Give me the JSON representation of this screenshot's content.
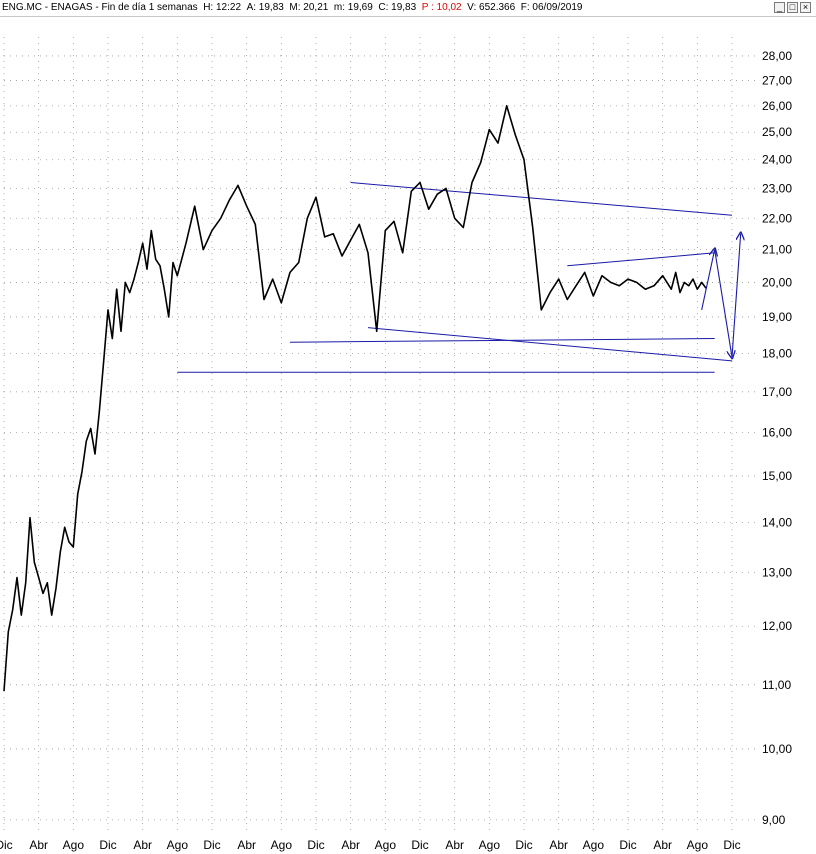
{
  "window": {
    "title": {
      "symbol": "ENG.MC",
      "name": "ENAGAS",
      "period": "Fin de día 1 semanas",
      "time": "H: 12:22",
      "open": "A: 19,83",
      "high": "M: 20,21",
      "low": "m: 19,69",
      "close": "C: 19,83",
      "p": "P : 10,02",
      "volume": "V: 652.366",
      "date": "F: 06/09/2019"
    },
    "buttons": {
      "minimize": "_",
      "restore": "□",
      "close": "×"
    }
  },
  "colors": {
    "price": "#000000",
    "trendline": "#1a1aa8",
    "grid": "#9a9a9a",
    "background": "#ffffff",
    "highlight": "#e00000"
  },
  "chart_data": {
    "type": "line",
    "scale": "log",
    "ylim": [
      8.8,
      28.8
    ],
    "y_ticks": [
      "28,00",
      "27,00",
      "26,00",
      "25,00",
      "24,00",
      "23,00",
      "22,00",
      "21,00",
      "20,00",
      "19,00",
      "18,00",
      "17,00",
      "16,00",
      "15,00",
      "14,00",
      "13,00",
      "12,00",
      "11,00",
      "10,00",
      "9,00"
    ],
    "x_ticks": [
      "Dic",
      "Abr",
      "Ago",
      "Dic",
      "Abr",
      "Ago",
      "Dic",
      "Abr",
      "Ago",
      "Dic",
      "Abr",
      "Ago",
      "Dic",
      "Abr",
      "Ago",
      "Dic",
      "Abr",
      "Ago",
      "Dic",
      "Abr",
      "Ago",
      "Dic"
    ],
    "x_tick_positions": [
      0,
      4,
      8,
      12,
      16,
      20,
      24,
      28,
      32,
      36,
      40,
      44,
      48,
      52,
      56,
      60,
      64,
      68,
      72,
      76,
      80,
      84
    ],
    "xlim": [
      0,
      87
    ],
    "series": [
      {
        "x": [
          0,
          0.5,
          1,
          1.5,
          2,
          2.5,
          3,
          3.5,
          4,
          4.5,
          5,
          5.5,
          6,
          6.5,
          7,
          7.5,
          8,
          8.5,
          9,
          9.5,
          10,
          10.5,
          11,
          11.5,
          12,
          12.5,
          13,
          13.5,
          14,
          14.5,
          15,
          15.5,
          16,
          16.5,
          17,
          17.5,
          18,
          18.5,
          19,
          19.5,
          20,
          21,
          22,
          23,
          24,
          25,
          26,
          27,
          28,
          29,
          30,
          31,
          32,
          33,
          34,
          35,
          36,
          37,
          38,
          39,
          40,
          41,
          42,
          43,
          44,
          45,
          46,
          47,
          48,
          49,
          50,
          51,
          52,
          53,
          54,
          55,
          56,
          57,
          58,
          59,
          60,
          61,
          62,
          63,
          64,
          65,
          66,
          67,
          68,
          69,
          70,
          71,
          72,
          73,
          74,
          75,
          76,
          77,
          77.5,
          78,
          78.5,
          79,
          79.5,
          80,
          80.5,
          81
        ],
        "values": [
          10.9,
          11.9,
          12.3,
          12.9,
          12.2,
          12.8,
          14.1,
          13.2,
          12.9,
          12.6,
          12.8,
          12.2,
          12.7,
          13.4,
          13.9,
          13.6,
          13.5,
          14.6,
          15.1,
          15.8,
          16.1,
          15.5,
          16.5,
          17.8,
          19.2,
          18.4,
          19.8,
          18.6,
          20.0,
          19.7,
          20.1,
          20.6,
          21.2,
          20.4,
          21.6,
          20.7,
          20.5,
          19.8,
          19.0,
          20.6,
          20.2,
          21.2,
          22.4,
          21.0,
          21.6,
          22.0,
          22.6,
          23.1,
          22.4,
          21.8,
          19.5,
          20.1,
          19.4,
          20.3,
          20.6,
          22.0,
          22.7,
          21.4,
          21.5,
          20.8,
          21.3,
          21.8,
          20.9,
          18.6,
          21.6,
          21.9,
          20.9,
          22.9,
          23.2,
          22.3,
          22.8,
          23.0,
          22.0,
          21.7,
          23.2,
          23.9,
          25.1,
          24.6,
          26.0,
          24.9,
          24.0,
          21.7,
          19.2,
          19.7,
          20.1,
          19.5,
          19.9,
          20.3,
          19.6,
          20.2,
          20.0,
          19.9,
          20.1,
          20.0,
          19.8,
          19.9,
          20.2,
          19.8,
          20.3,
          19.7,
          20.0,
          19.9,
          20.1,
          19.8,
          20.0,
          19.83
        ]
      }
    ],
    "trendlines": [
      {
        "x": [
          40,
          84
        ],
        "values": [
          23.2,
          22.1
        ]
      },
      {
        "x": [
          42,
          84
        ],
        "values": [
          18.7,
          17.8
        ]
      },
      {
        "x": [
          33,
          82
        ],
        "values": [
          18.3,
          18.4
        ]
      },
      {
        "x": [
          20,
          82
        ],
        "values": [
          17.5,
          17.5
        ]
      },
      {
        "x": [
          65,
          82
        ],
        "values": [
          20.5,
          20.9
        ]
      }
    ],
    "projection": {
      "x": [
        80.5,
        82,
        84,
        85
      ],
      "values": [
        19.2,
        21.0,
        17.9,
        21.5
      ]
    },
    "grid": true
  }
}
